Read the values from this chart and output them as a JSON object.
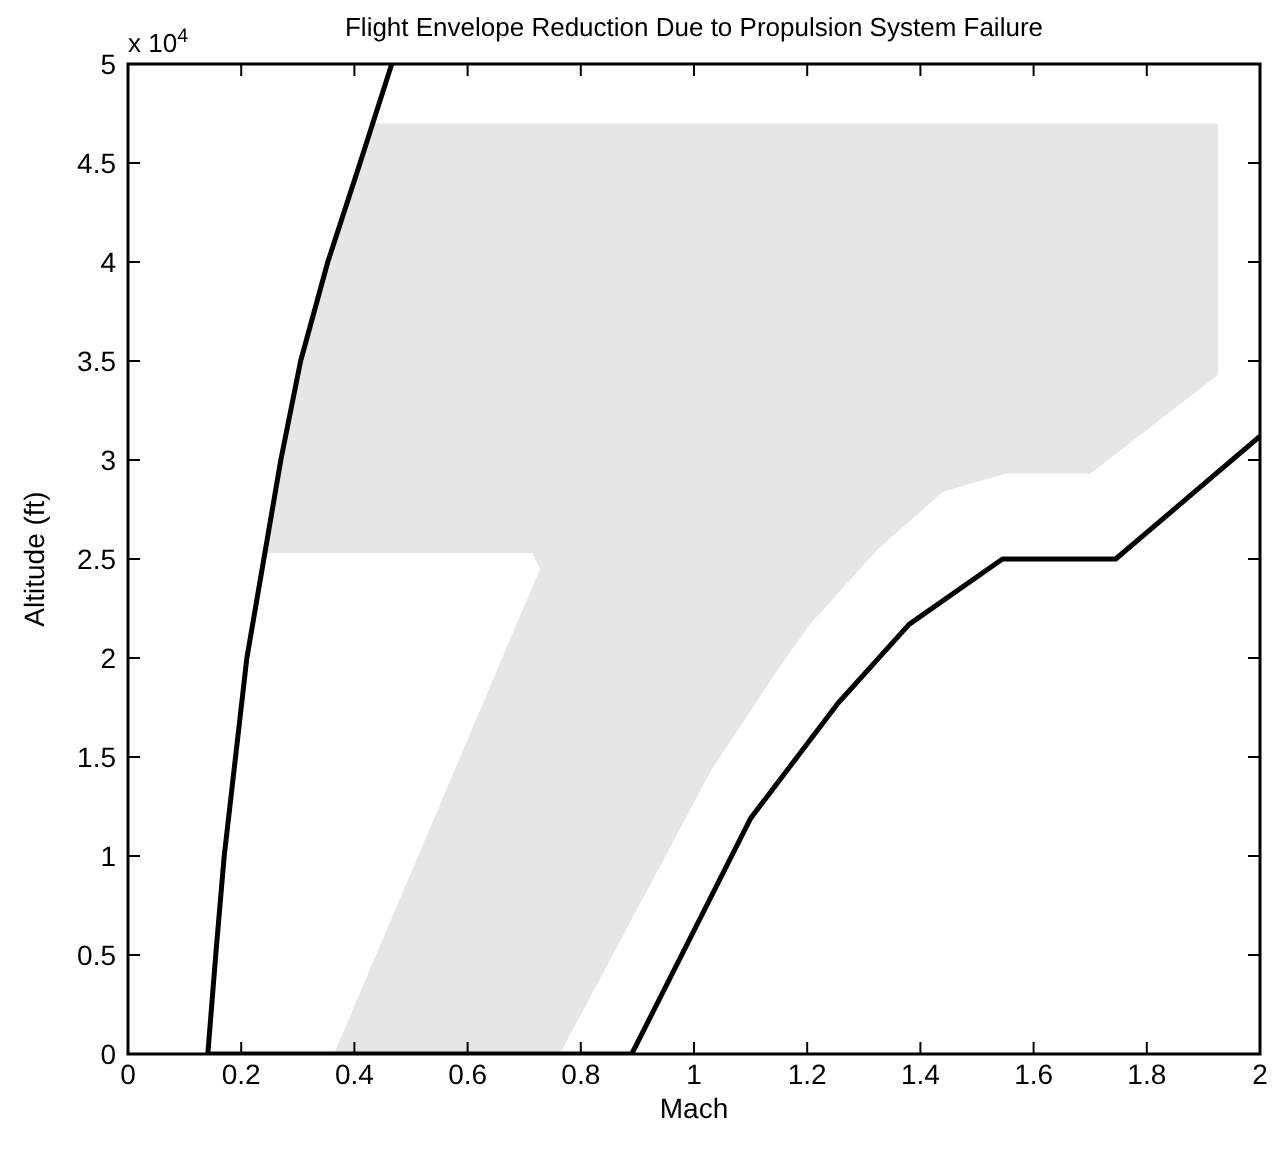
{
  "chart_data": {
    "type": "line",
    "title": "Flight Envelope Reduction Due to Propulsion System Failure",
    "xlabel": "Mach",
    "ylabel": "Altitude (ft)",
    "annotations": [
      "x 10$^{4}$"
    ],
    "xlim": [
      0,
      2
    ],
    "xticks": [
      0,
      0.2,
      0.4,
      0.6,
      0.8,
      1,
      1.2,
      1.4,
      1.6,
      1.8,
      2
    ],
    "ylim": [
      0,
      5
    ],
    "yticks": [
      0,
      0.5,
      1,
      1.5,
      2,
      2.5,
      3,
      3.5,
      4,
      4.5,
      5
    ],
    "grid": false,
    "series": [
      {
        "type": "area",
        "color": "#e6e6e6",
        "x": [
          0.24,
          0.27,
          0.305,
          0.353,
          0.41,
          0.43,
          1.926,
          1.926,
          1.7,
          1.55,
          1.44,
          1.325,
          1.205,
          1.15,
          1.03,
          0.763,
          0.364,
          0.728,
          0.714
        ],
        "values": [
          2.53,
          3,
          3.5,
          4,
          4.5,
          4.7,
          4.7,
          3.43,
          2.93,
          2.93,
          2.84,
          2.55,
          2.17,
          1.95,
          1.43,
          0,
          0,
          2.45,
          2.53
        ]
      },
      {
        "color": "#000000",
        "x": [
          0.466,
          0.41,
          0.353,
          0.305,
          0.27,
          0.24,
          0.21,
          0.17,
          0.155,
          0.141,
          0.89,
          1.1,
          1.254,
          1.38,
          1.545,
          1.745,
          2.0
        ],
        "values": [
          5,
          4.5,
          4,
          3.5,
          3,
          2.5,
          2,
          1,
          0.5,
          0,
          0,
          1.19,
          1.77,
          2.17,
          2.5,
          2.5,
          3.12
        ]
      }
    ]
  }
}
